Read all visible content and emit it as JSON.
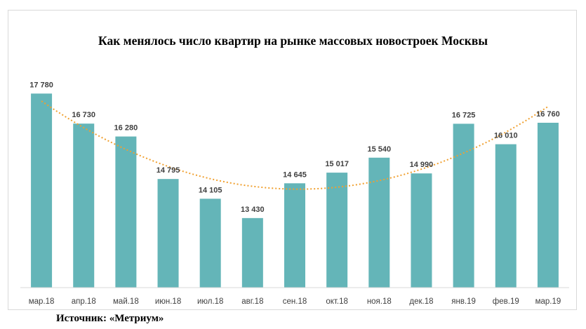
{
  "source": "Источник: «Метриум»",
  "chart_data": {
    "type": "bar",
    "title": "Как менялось число квартир на рынке массовых новостроек Москвы",
    "xlabel": "",
    "ylabel": "",
    "categories": [
      "мар.18",
      "апр.18",
      "май.18",
      "июн.18",
      "июл.18",
      "авг.18",
      "сен.18",
      "окт.18",
      "ноя.18",
      "дек.18",
      "янв.19",
      "фев.19",
      "мар.19"
    ],
    "values": [
      17780,
      16730,
      16280,
      14795,
      14105,
      13430,
      14645,
      15017,
      15540,
      14990,
      16725,
      16010,
      16760
    ],
    "value_labels": [
      "17 780",
      "16 730",
      "16 280",
      "14 795",
      "14 105",
      "13 430",
      "14 645",
      "15 017",
      "15 540",
      "14 990",
      "16 725",
      "16 010",
      "16 760"
    ],
    "ylim": [
      11000,
      18500
    ],
    "trendline": "polynomial",
    "grid": false,
    "legend": "none",
    "colors": {
      "bar": "#64B5B8",
      "trend": "#F0A030",
      "axis": "#d9d9d9",
      "text": "#404040"
    }
  }
}
